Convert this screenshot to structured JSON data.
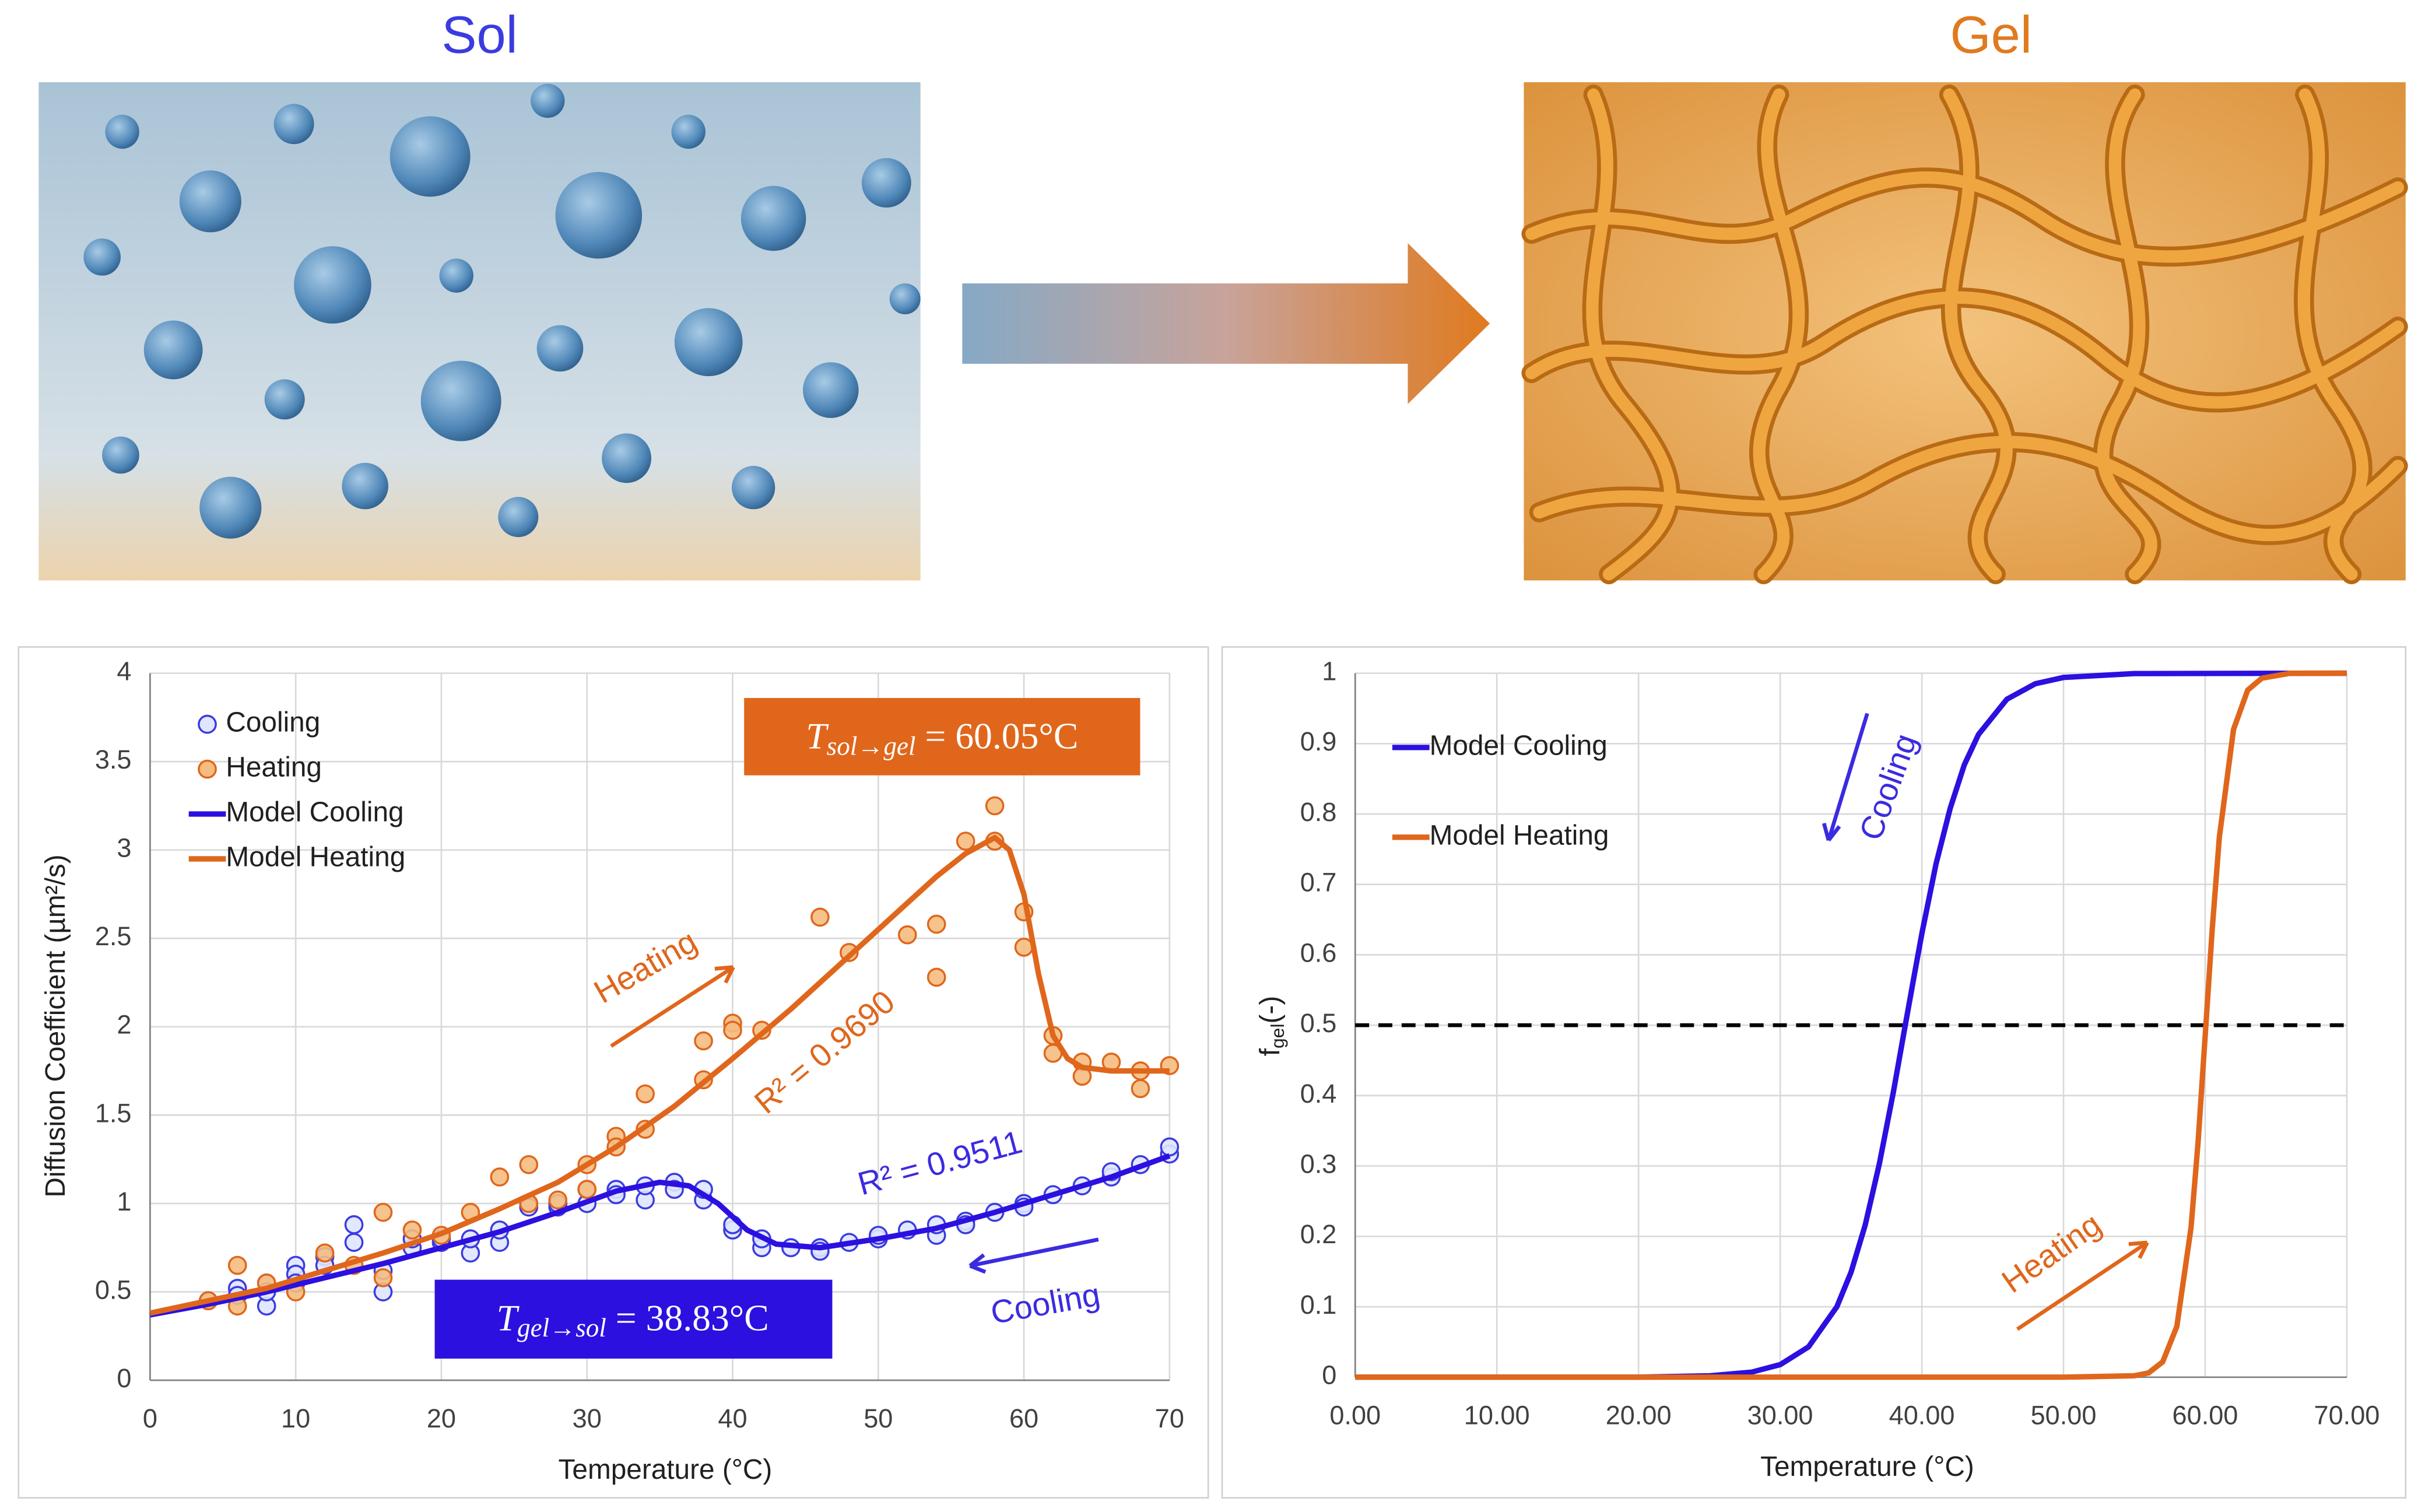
{
  "figure": {
    "sol_label": "Sol",
    "gel_label": "Gel"
  },
  "chart_data": [
    {
      "type": "scatter",
      "x_label": "Temperature (°C)",
      "y_label": "Diffusion Coefficient (µm²/s)",
      "xlim": [
        0,
        70
      ],
      "ylim": [
        0,
        4
      ],
      "xticks": [
        0,
        10,
        20,
        30,
        40,
        50,
        60,
        70
      ],
      "yticks": [
        0,
        0.5,
        1,
        1.5,
        2,
        2.5,
        3,
        3.5,
        4
      ],
      "grid": true,
      "legend": "upper left",
      "series": [
        {
          "name": "Cooling",
          "type": "scatter",
          "color": "#3b3be0",
          "x": [
            4,
            6,
            6,
            8,
            8,
            8,
            10,
            10,
            10,
            12,
            12,
            14,
            14,
            16,
            16,
            18,
            18,
            20,
            20,
            22,
            22,
            24,
            24,
            26,
            26,
            28,
            28,
            30,
            30,
            32,
            32,
            34,
            34,
            36,
            36,
            38,
            38,
            40,
            40,
            42,
            42,
            44,
            46,
            46,
            48,
            50,
            50,
            52,
            54,
            54,
            56,
            56,
            58,
            60,
            60,
            62,
            64,
            66,
            66,
            68,
            70,
            70
          ],
          "values": [
            0.45,
            0.52,
            0.48,
            0.55,
            0.42,
            0.5,
            0.65,
            0.6,
            0.55,
            0.7,
            0.65,
            0.88,
            0.78,
            0.5,
            0.62,
            0.75,
            0.8,
            0.78,
            0.8,
            0.72,
            0.8,
            0.78,
            0.85,
            1.0,
            0.98,
            0.98,
            1.0,
            1.0,
            1.08,
            1.08,
            1.05,
            1.02,
            1.1,
            1.12,
            1.08,
            1.02,
            1.08,
            0.85,
            0.88,
            0.75,
            0.8,
            0.75,
            0.75,
            0.73,
            0.78,
            0.8,
            0.82,
            0.85,
            0.82,
            0.88,
            0.9,
            0.88,
            0.95,
            1.0,
            0.98,
            1.05,
            1.1,
            1.15,
            1.18,
            1.22,
            1.28,
            1.32
          ]
        },
        {
          "name": "Heating",
          "type": "scatter",
          "color": "#e0661c",
          "x": [
            4,
            6,
            6,
            8,
            10,
            12,
            14,
            16,
            16,
            18,
            20,
            22,
            24,
            26,
            26,
            28,
            30,
            30,
            32,
            32,
            34,
            34,
            38,
            38,
            40,
            40,
            42,
            46,
            48,
            52,
            54,
            54,
            56,
            58,
            58,
            60,
            60,
            62,
            62,
            64,
            64,
            66,
            68,
            68,
            70
          ],
          "values": [
            0.45,
            0.65,
            0.42,
            0.55,
            0.5,
            0.72,
            0.65,
            0.95,
            0.58,
            0.85,
            0.82,
            0.95,
            1.15,
            1.22,
            1.0,
            1.02,
            1.22,
            1.08,
            1.38,
            1.32,
            1.62,
            1.42,
            1.7,
            1.92,
            2.02,
            1.98,
            1.98,
            2.62,
            2.42,
            2.52,
            2.58,
            2.28,
            3.05,
            3.25,
            3.05,
            2.65,
            2.45,
            1.95,
            1.85,
            1.8,
            1.72,
            1.8,
            1.75,
            1.65,
            1.78
          ]
        },
        {
          "name": "Model Cooling",
          "type": "line",
          "color": "#2b10e0",
          "x": [
            0,
            4,
            8,
            12,
            16,
            20,
            24,
            28,
            32,
            35,
            37,
            39,
            41,
            43,
            46,
            50,
            54,
            58,
            62,
            66,
            70
          ],
          "values": [
            0.37,
            0.43,
            0.5,
            0.58,
            0.66,
            0.75,
            0.84,
            0.95,
            1.07,
            1.12,
            1.1,
            1.0,
            0.85,
            0.77,
            0.75,
            0.8,
            0.86,
            0.95,
            1.05,
            1.15,
            1.27
          ]
        },
        {
          "name": "Model Heating",
          "type": "line",
          "color": "#e0661c",
          "x": [
            0,
            4,
            8,
            12,
            16,
            20,
            24,
            28,
            32,
            36,
            40,
            44,
            48,
            52,
            54,
            56,
            58,
            59,
            60,
            61,
            62,
            63,
            64,
            66,
            70
          ],
          "values": [
            0.38,
            0.45,
            0.52,
            0.62,
            0.72,
            0.83,
            0.97,
            1.12,
            1.32,
            1.55,
            1.82,
            2.1,
            2.4,
            2.7,
            2.85,
            2.98,
            3.07,
            3.0,
            2.75,
            2.3,
            1.95,
            1.82,
            1.77,
            1.75,
            1.75
          ]
        }
      ],
      "annotations": {
        "t_sol_gel": {
          "symbol": "T",
          "subscript": "sol→gel",
          "value": "= 60.05°C"
        },
        "t_gel_sol": {
          "symbol": "T",
          "subscript": "gel→sol",
          "value": "= 38.83°C"
        },
        "heating": "Heating",
        "cooling": "Cooling",
        "r2_heating": "R² = 0.9690",
        "r2_cooling": "R² = 0.9511"
      }
    },
    {
      "type": "line",
      "x_label": "Temperature (°C)",
      "y_label": {
        "main": "f",
        "subscript": "gel",
        "unit": "(-)"
      },
      "xlim": [
        0,
        70
      ],
      "ylim": [
        0,
        1
      ],
      "xticks": [
        {
          "value": 0,
          "label": "0.00"
        },
        {
          "value": 10,
          "label": "10.00"
        },
        {
          "value": 20,
          "label": "20.00"
        },
        {
          "value": 30,
          "label": "30.00"
        },
        {
          "value": 40,
          "label": "40.00"
        },
        {
          "value": 50,
          "label": "50.00"
        },
        {
          "value": 60,
          "label": "60.00"
        },
        {
          "value": 70,
          "label": "70.00"
        }
      ],
      "yticks": [
        0,
        0.1,
        0.2,
        0.3,
        0.4,
        0.5,
        0.6,
        0.7,
        0.8,
        0.9,
        1
      ],
      "grid": true,
      "legend": "upper left",
      "threshold": 0.5,
      "series": [
        {
          "name": "Model Cooling",
          "type": "line",
          "color": "#2b10e0",
          "x": [
            0,
            20,
            25,
            28,
            30,
            32,
            34,
            35,
            36,
            37,
            38,
            38.83,
            39.5,
            40,
            41,
            42,
            43,
            44,
            46,
            48,
            50,
            55,
            70
          ],
          "values": [
            0,
            0,
            0.0019,
            0.0072,
            0.0178,
            0.043,
            0.1,
            0.149,
            0.216,
            0.303,
            0.406,
            0.5,
            0.575,
            0.63,
            0.729,
            0.808,
            0.87,
            0.913,
            0.963,
            0.985,
            0.994,
            0.9995,
            1
          ]
        },
        {
          "name": "Model Heating",
          "type": "line",
          "color": "#e0661c",
          "x": [
            0,
            50,
            55,
            56,
            57,
            58,
            59,
            59.5,
            60.05,
            60.5,
            61,
            62,
            63,
            64,
            66,
            70
          ],
          "values": [
            0,
            0,
            0.002,
            0.006,
            0.0217,
            0.072,
            0.212,
            0.334,
            0.5,
            0.637,
            0.767,
            0.92,
            0.976,
            0.993,
            1,
            1
          ]
        }
      ],
      "annotations": {
        "cooling": "Cooling",
        "heating": "Heating"
      }
    }
  ]
}
